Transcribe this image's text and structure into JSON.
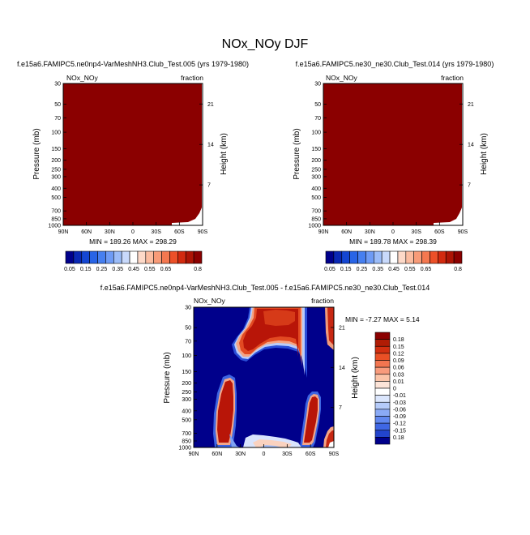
{
  "page_title": "NOx_NOy DJF",
  "chart_data": [
    {
      "type": "heatmap",
      "title": "f.e15a6.FAMIPC5.ne0np4-VarMeshNH3.Club_Test.005 (yrs 1979-1980)",
      "left_label": "NOx_NOy",
      "right_label": "fraction",
      "ylabel": "Pressure (mb)",
      "ylabel_right": "Height (km)",
      "x_ticks": [
        "90N",
        "60N",
        "30N",
        "0",
        "30S",
        "60S",
        "90S"
      ],
      "y_ticks": [
        30,
        50,
        70,
        100,
        150,
        200,
        250,
        300,
        400,
        500,
        700,
        850,
        1000
      ],
      "y_ticks_right": [
        21,
        14,
        7
      ],
      "ylim": [
        1000,
        30
      ],
      "y_scale": "log",
      "min_max": "MIN = 189.26   MAX = 298.29",
      "fill": "#8b0000"
    },
    {
      "type": "heatmap",
      "title": "f.e15a6.FAMIPC5.ne30_ne30.Club_Test.014 (yrs 1979-1980)",
      "left_label": "NOx_NOy",
      "right_label": "fraction",
      "ylabel": "Pressure (mb)",
      "ylabel_right": "Height (km)",
      "x_ticks": [
        "90N",
        "60N",
        "30N",
        "0",
        "30S",
        "60S",
        "90S"
      ],
      "y_ticks": [
        30,
        50,
        70,
        100,
        150,
        200,
        250,
        300,
        400,
        500,
        700,
        850,
        1000
      ],
      "y_ticks_right": [
        21,
        14,
        7
      ],
      "ylim": [
        1000,
        30
      ],
      "y_scale": "log",
      "min_max": "MIN = 189.78   MAX = 298.39",
      "fill": "#8b0000"
    },
    {
      "type": "heatmap",
      "title": "f.e15a6.FAMIPC5.ne0np4-VarMeshNH3.Club_Test.005 - f.e15a6.FAMIPC5.ne30_ne30.Club_Test.014",
      "left_label": "NOx_NOy",
      "right_label": "fraction",
      "ylabel": "Pressure (mb)",
      "ylabel_right": "Height (km)",
      "x_ticks": [
        "90N",
        "60N",
        "30N",
        "0",
        "30S",
        "60S",
        "90S"
      ],
      "y_ticks": [
        30,
        50,
        70,
        100,
        150,
        200,
        250,
        300,
        400,
        500,
        700,
        850,
        1000
      ],
      "y_ticks_right": [
        21,
        14,
        7
      ],
      "ylim": [
        1000,
        30
      ],
      "y_scale": "log",
      "min_max": "MIN =  -7.27   MAX =   5.14"
    }
  ],
  "colorbar_main": {
    "labels": [
      "0.05",
      "0.15",
      "0.25",
      "0.35",
      "0.45",
      "0.55",
      "0.65",
      "0.8"
    ],
    "colors": [
      "#00008b",
      "#0a28b4",
      "#1446d2",
      "#2864e6",
      "#467ff0",
      "#6e9bf5",
      "#9bbcf8",
      "#c8d9fb",
      "#ffffff",
      "#fdd9c8",
      "#fbbca0",
      "#f89b78",
      "#f47850",
      "#ec5028",
      "#d22a0f",
      "#ad1405",
      "#8b0000"
    ]
  },
  "colorbar_diff": {
    "labels": [
      "0.18",
      "0.15",
      "0.12",
      "0.09",
      "0.06",
      "0.03",
      "0.01",
      "0",
      "-0.01",
      "-0.03",
      "-0.06",
      "-0.09",
      "-0.12",
      "-0.15",
      "0.18"
    ],
    "colors": [
      "#8b0000",
      "#b01c05",
      "#d22f10",
      "#ea5025",
      "#f27550",
      "#f89b7c",
      "#fbc4a8",
      "#fde4d8",
      "#ffffff",
      "#dbe6fd",
      "#b5cbfa",
      "#8aaaf6",
      "#6188f0",
      "#3f67e4",
      "#2244cc",
      "#00008b"
    ]
  }
}
